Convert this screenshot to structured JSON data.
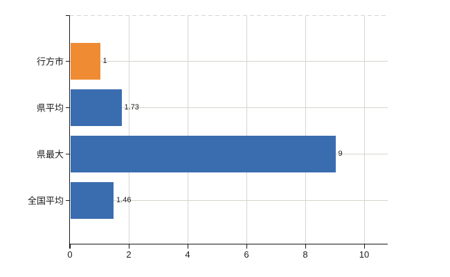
{
  "chart_data": {
    "type": "bar",
    "orientation": "horizontal",
    "title": "",
    "xlabel": "",
    "ylabel": "",
    "legend": "none",
    "grid": "on",
    "categories": [
      "行方市",
      "県平均",
      "県最大",
      "全国平均"
    ],
    "values": [
      1,
      1.73,
      9,
      1.46
    ],
    "value_labels": [
      "1",
      "1.73",
      "9",
      "1.46"
    ],
    "highlight_category": "行方市",
    "x_tick_labels": [
      "0",
      "2",
      "4",
      "6",
      "8",
      "10"
    ],
    "x_tick_values": [
      0,
      2,
      4,
      6,
      8,
      10
    ],
    "xlim": [
      0,
      10.8
    ],
    "colors": {
      "highlight_bar": "#EF8B33",
      "bar": "#3A6CB0",
      "axis": "#161616",
      "text": "#1c1c1c",
      "h_gridline": "#cfd7cb",
      "v_gridline_a": "#ddd0d8",
      "v_gridline_b": "#cedacd",
      "top_border_dash": "#d4d4d4",
      "background": "#ffffff"
    }
  }
}
